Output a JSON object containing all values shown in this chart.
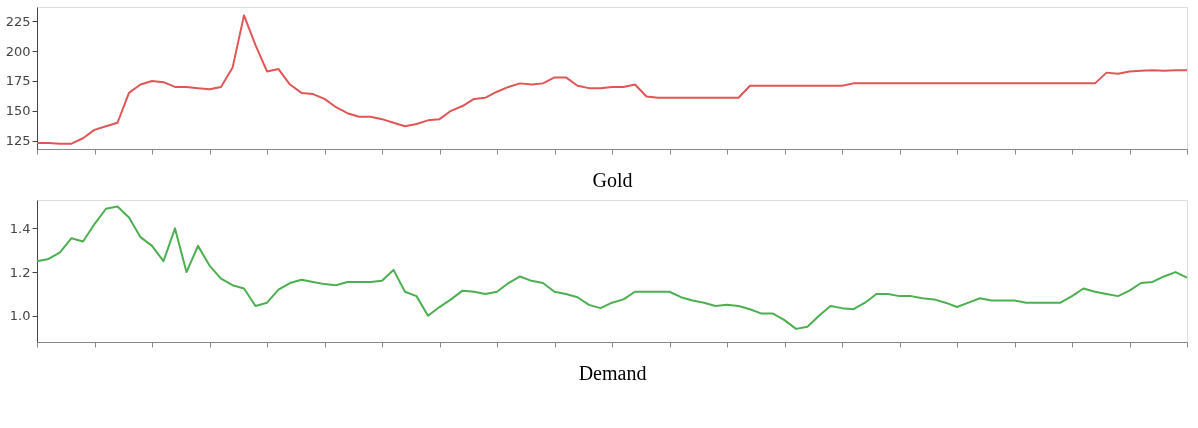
{
  "chart_data": [
    {
      "type": "line",
      "xlabel": "Gold",
      "tick_labels": "y",
      "ylim": [
        118,
        237
      ],
      "yticks": [
        125,
        150,
        175,
        200,
        225
      ],
      "categories": [
        null,
        null,
        null,
        null,
        null,
        null,
        null,
        null,
        null,
        null,
        null,
        null,
        null,
        null,
        null,
        null,
        null,
        null,
        null,
        null,
        null,
        null,
        null,
        null,
        null,
        null,
        null,
        null,
        null,
        null,
        null,
        null,
        null,
        null,
        null,
        null,
        null,
        null,
        null,
        null,
        null,
        null,
        null,
        null,
        null,
        null,
        null,
        null,
        null,
        null,
        null,
        null,
        null,
        null,
        null,
        null,
        null,
        null,
        null,
        null,
        null,
        null,
        null,
        null,
        null,
        null,
        null,
        null,
        null,
        null,
        null,
        null,
        null,
        null,
        null,
        null,
        null,
        null,
        null,
        null,
        null,
        null,
        null,
        null,
        null,
        null,
        null,
        null,
        null,
        null,
        null,
        null,
        null,
        null,
        null,
        null,
        null,
        null,
        null,
        null,
        null
      ],
      "series": [
        {
          "color": "#e05656",
          "values": [
            123,
            123,
            122.5,
            122.5,
            127,
            134,
            137,
            140,
            165,
            172,
            175,
            174,
            170,
            170,
            169,
            168,
            170,
            186,
            230,
            205,
            183,
            185,
            172,
            165,
            164,
            160,
            153,
            148,
            145,
            145,
            143,
            140,
            137,
            139,
            142,
            143,
            150,
            154,
            160,
            161,
            166,
            170,
            173,
            172,
            173,
            178,
            178,
            171,
            169,
            169,
            170,
            170,
            172,
            162,
            161,
            161,
            161,
            161,
            161,
            161,
            161,
            161,
            171,
            171,
            171,
            171,
            171,
            171,
            171,
            171,
            171,
            173,
            173,
            173,
            173,
            173,
            173,
            173,
            173,
            173,
            173,
            173,
            173,
            173,
            173,
            173,
            173,
            173,
            173,
            173,
            173,
            173,
            173,
            182,
            181,
            183,
            183.5,
            184,
            183.5,
            184,
            184
          ]
        }
      ]
    },
    {
      "type": "line",
      "xlabel": "Demand",
      "tick_labels": "y",
      "ylim": [
        0.88,
        1.53
      ],
      "yticks": [
        {
          "value": 1.0,
          "label": "1.0"
        },
        {
          "value": 1.2,
          "label": "1.2"
        },
        {
          "value": 1.4,
          "label": "1.4"
        }
      ],
      "categories": [
        null,
        null,
        null,
        null,
        null,
        null,
        null,
        null,
        null,
        null,
        null,
        null,
        null,
        null,
        null,
        null,
        null,
        null,
        null,
        null,
        null,
        null,
        null,
        null,
        null,
        null,
        null,
        null,
        null,
        null,
        null,
        null,
        null,
        null,
        null,
        null,
        null,
        null,
        null,
        null,
        null,
        null,
        null,
        null,
        null,
        null,
        null,
        null,
        null,
        null,
        null,
        null,
        null,
        null,
        null,
        null,
        null,
        null,
        null,
        null,
        null,
        null,
        null,
        null,
        null,
        null,
        null,
        null,
        null,
        null,
        null,
        null,
        null,
        null,
        null,
        null,
        null,
        null,
        null,
        null,
        null,
        null,
        null,
        null,
        null,
        null,
        null,
        null,
        null,
        null,
        null,
        null,
        null,
        null,
        null,
        null,
        null,
        null,
        null,
        null,
        null
      ],
      "series": [
        {
          "color": "#4caf50",
          "values": [
            1.25,
            1.26,
            1.29,
            1.355,
            1.34,
            1.42,
            1.49,
            1.5,
            1.45,
            1.36,
            1.32,
            1.25,
            1.4,
            1.2,
            1.32,
            1.23,
            1.17,
            1.14,
            1.125,
            1.045,
            1.06,
            1.12,
            1.15,
            1.165,
            1.155,
            1.145,
            1.14,
            1.155,
            1.155,
            1.155,
            1.16,
            1.21,
            1.11,
            1.09,
            1.0,
            1.04,
            1.075,
            1.115,
            1.11,
            1.1,
            1.11,
            1.15,
            1.18,
            1.16,
            1.15,
            1.11,
            1.1,
            1.085,
            1.05,
            1.035,
            1.06,
            1.075,
            1.11,
            1.11,
            1.11,
            1.11,
            1.085,
            1.07,
            1.06,
            1.045,
            1.05,
            1.045,
            1.03,
            1.01,
            1.01,
            0.98,
            0.94,
            0.95,
            1.0,
            1.045,
            1.035,
            1.03,
            1.06,
            1.1,
            1.1,
            1.09,
            1.09,
            1.08,
            1.075,
            1.06,
            1.04,
            1.06,
            1.08,
            1.07,
            1.07,
            1.07,
            1.06,
            1.06,
            1.06,
            1.06,
            1.09,
            1.125,
            1.11,
            1.1,
            1.09,
            1.115,
            1.15,
            1.155,
            1.18,
            1.2,
            1.175
          ]
        }
      ]
    }
  ]
}
